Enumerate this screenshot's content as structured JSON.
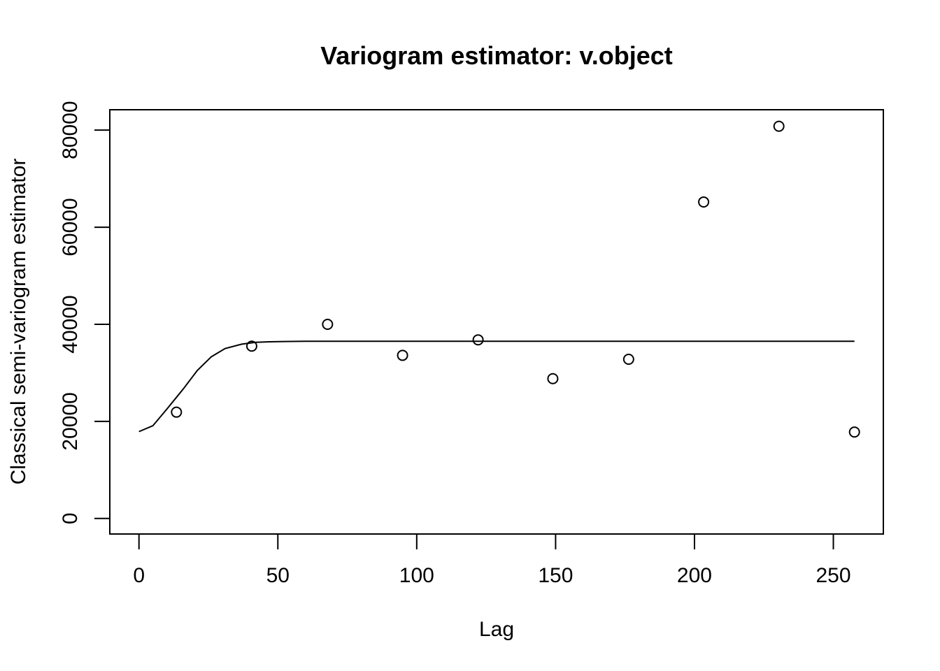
{
  "chart_data": {
    "type": "scatter",
    "title": "Variogram estimator: v.object",
    "xlabel": "Lag",
    "ylabel": "Classical semi-variogram estimator",
    "xlim": [
      -10.5,
      268
    ],
    "ylim": [
      -3200,
      84200
    ],
    "x_ticks": [
      0,
      50,
      100,
      150,
      200,
      250
    ],
    "y_ticks": [
      0,
      20000,
      40000,
      60000,
      80000
    ],
    "x_tick_labels": [
      "0",
      "50",
      "100",
      "150",
      "200",
      "250"
    ],
    "y_tick_labels": [
      "0",
      "20000",
      "40000",
      "60000",
      "80000"
    ],
    "grid": false,
    "series": [
      {
        "type": "points",
        "x": [
          13.5,
          40.6,
          67.9,
          94.9,
          122.1,
          149.0,
          176.3,
          203.3,
          230.4,
          257.6
        ],
        "y": [
          21900,
          35500,
          40000,
          33600,
          36800,
          28800,
          32800,
          65200,
          80800,
          17800
        ]
      },
      {
        "type": "line",
        "x": [
          0,
          5,
          10,
          16,
          21,
          26,
          31,
          37,
          42,
          47,
          52,
          60,
          80,
          120,
          160,
          200,
          257.6
        ],
        "y": [
          17900,
          19100,
          22500,
          26700,
          30500,
          33300,
          35000,
          35900,
          36300,
          36400,
          36450,
          36500,
          36500,
          36500,
          36500,
          36500,
          36500
        ]
      }
    ]
  }
}
